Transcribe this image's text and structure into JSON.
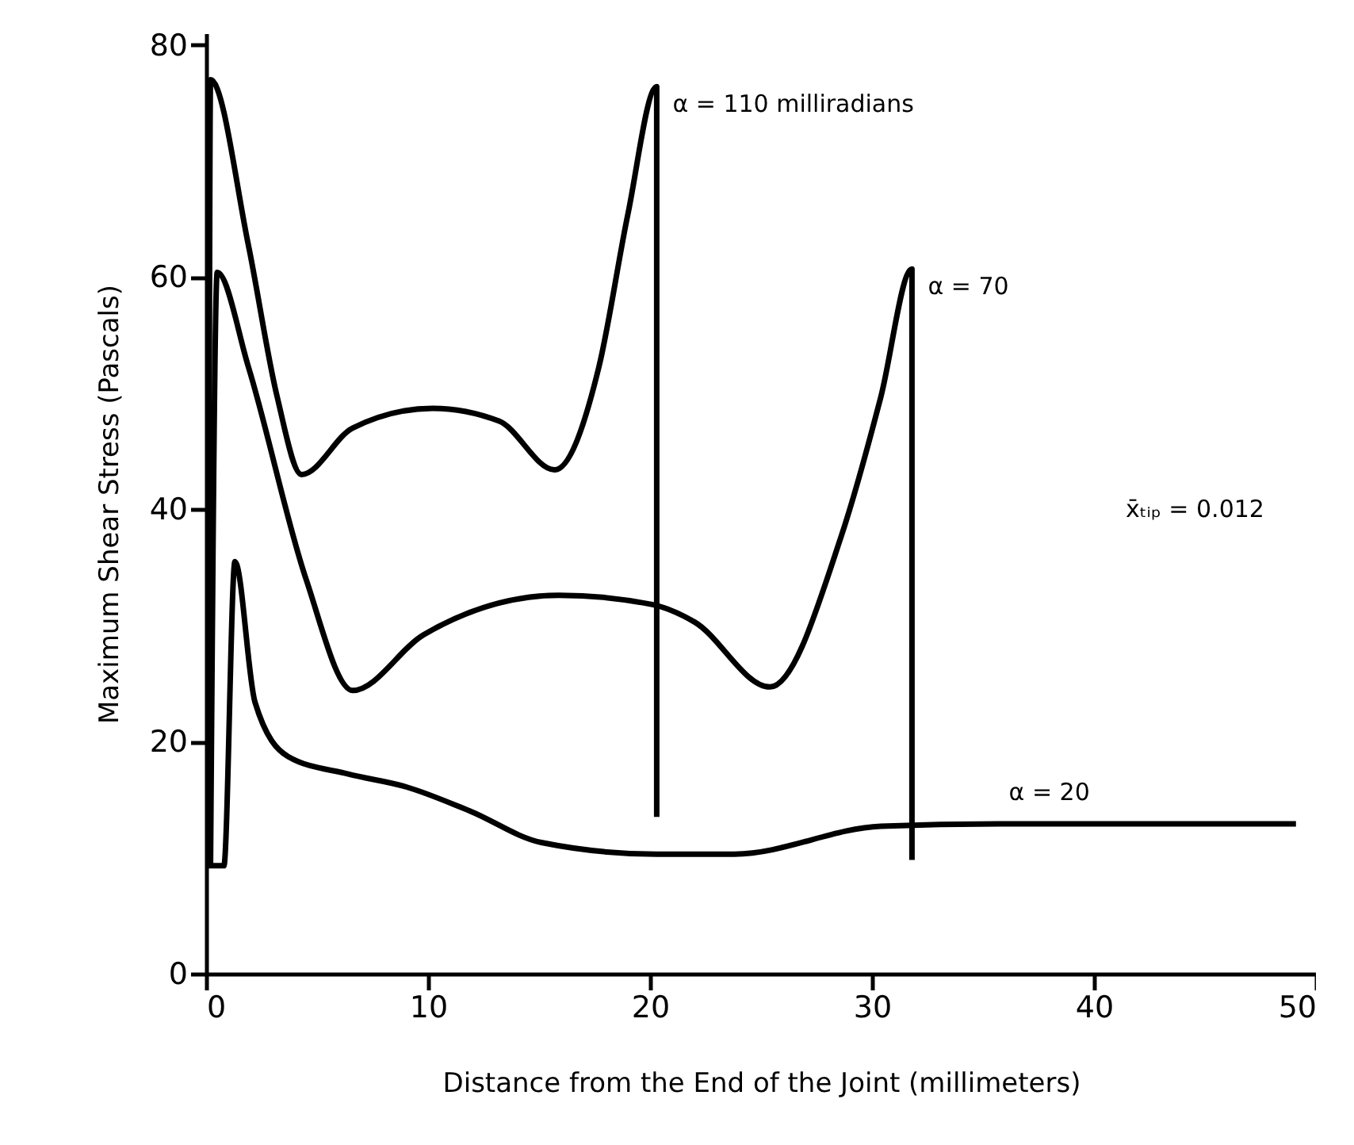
{
  "chart_data": {
    "type": "line",
    "xlabel": "Distance from the End of the Joint (millimeters)",
    "ylabel": "Maximum Shear Stress (Pascals)",
    "xlim": [
      0,
      50
    ],
    "xticks": [
      0,
      10,
      20,
      30,
      40,
      50
    ],
    "ylim": [
      0,
      81
    ],
    "yticks": [
      0,
      20,
      40,
      60,
      80
    ],
    "line_style": "solid",
    "series": [
      {
        "name": "α = 110 milliradians",
        "color": "#000000",
        "x": [
          0.1,
          0.2,
          1.9,
          3.2,
          4.3,
          6.6,
          10.2,
          13.2,
          15.7,
          17.7,
          19.0,
          20.3,
          20.3
        ],
        "values": [
          9.5,
          77,
          62.8,
          49.7,
          43,
          47,
          48.7,
          47.6,
          43.4,
          52.3,
          65.4,
          76.4,
          13.5
        ]
      },
      {
        "name": "α = 70",
        "color": "#000000",
        "x": [
          0.2,
          0.5,
          1.9,
          4.5,
          6.6,
          9.8,
          15.9,
          20.1,
          22.0,
          25.4,
          28.6,
          30.4,
          31.8,
          31.8
        ],
        "values": [
          9.5,
          60.4,
          52.3,
          34,
          24.4,
          29.2,
          32.6,
          31.8,
          30.3,
          24.7,
          37.6,
          49.7,
          60.7,
          9.8
        ]
      },
      {
        "name": "α = 20",
        "color": "#000000",
        "x": [
          0.1,
          0.8,
          1.3,
          2.2,
          3.7,
          6.4,
          9.0,
          11.9,
          15.1,
          20.3,
          23.8,
          30.4,
          35.7,
          49.1
        ],
        "values": [
          9.3,
          9.3,
          35.5,
          23.4,
          18.7,
          17.2,
          16.1,
          14.0,
          11.3,
          10.3,
          10.3,
          12.7,
          12.9,
          12.9
        ]
      }
    ],
    "annotations": [
      "x̄ₜᵢₚ = 0.012"
    ]
  }
}
